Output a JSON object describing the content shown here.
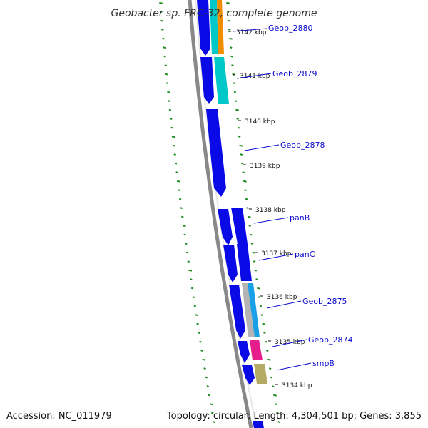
{
  "title": "Geobacter sp. FRC-32, complete genome",
  "footer": {
    "accession": "Accession: NC_011979",
    "topology": "Topology: circular; Length: 4,304,501 bp; Genes: 3,855"
  },
  "colors": {
    "cds": "#0a0ae6",
    "backbone": "#888888",
    "dot_track": "#1e8c1e",
    "label": "#0a0ad0",
    "orange": "#f08c00",
    "cyan": "#00c8c8",
    "sky": "#1aa0e6",
    "grey": "#b4b4b4",
    "magenta": "#e61e8c",
    "khaki": "#b4aa64"
  },
  "kbp_ticks": [
    "3142 kbp",
    "3141 kbp",
    "3140 kbp",
    "3139 kbp",
    "3138 kbp",
    "3137 kbp",
    "3136 kbp",
    "3135 kbp",
    "3134 kbp"
  ],
  "genes": [
    {
      "name": "Geob_2880"
    },
    {
      "name": "Geob_2879"
    },
    {
      "name": "Geob_2878"
    },
    {
      "name": "panB"
    },
    {
      "name": "panC"
    },
    {
      "name": "Geob_2875"
    },
    {
      "name": "Geob_2874"
    },
    {
      "name": "smpB"
    }
  ]
}
